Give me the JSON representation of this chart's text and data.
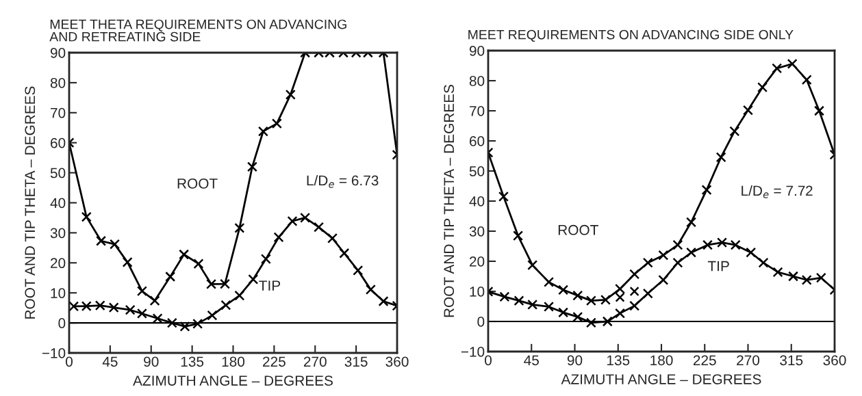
{
  "chart_data": [
    {
      "type": "line",
      "title": "MEET THETA REQUIREMENTS ON ADVANCING\nAND RETREATING SIDE",
      "xlabel": "AZIMUTH ANGLE – DEGREES",
      "ylabel": "ROOT AND TIP THETA – DEGREES",
      "xlim": [
        0,
        360
      ],
      "xticks": [
        0,
        45,
        90,
        135,
        180,
        225,
        270,
        315,
        360
      ],
      "ylim": [
        -10,
        90
      ],
      "yticks": [
        {
          "value": -10,
          "label": "−10"
        },
        0,
        10,
        20,
        30,
        40,
        50,
        60,
        70,
        80,
        90
      ],
      "marker": "cross",
      "grid": false,
      "ref_lines": [
        {
          "axis": "y",
          "value": 0
        }
      ],
      "annotations": [
        "L/D$_{e}$ = 6.73"
      ],
      "series": [
        {
          "name": "ROOT",
          "color": "#000000",
          "x": [
            0,
            19,
            35,
            50,
            64,
            80,
            94,
            111,
            126,
            142,
            156,
            171,
            187,
            201,
            213,
            228,
            243,
            259,
            274,
            286,
            301,
            315,
            328,
            345,
            360
          ],
          "values": [
            60,
            35.3,
            27.3,
            26.2,
            20.2,
            10.6,
            7.4,
            15.4,
            22.8,
            19.7,
            12.9,
            13,
            31.6,
            52,
            63.8,
            66.4,
            76,
            90,
            90,
            90,
            90,
            90,
            90,
            90,
            56
          ]
        },
        {
          "name": "TIP",
          "color": "#000000",
          "x": [
            5,
            19,
            34,
            49,
            67,
            80,
            97,
            113,
            127,
            141,
            157,
            172,
            187,
            202,
            216,
            230,
            245,
            259,
            274,
            289,
            302,
            317,
            331,
            345,
            360
          ],
          "values": [
            5.5,
            5.6,
            5.8,
            5.1,
            4.3,
            3.1,
            1.5,
            0,
            -1.2,
            -0.3,
            2.5,
            5.9,
            9.1,
            14.5,
            21.3,
            28.5,
            33.9,
            35,
            31.9,
            28.2,
            23.2,
            17.5,
            11.1,
            7.2,
            5.7
          ]
        }
      ]
    },
    {
      "type": "line",
      "title": "MEET REQUIREMENTS ON ADVANCING SIDE ONLY",
      "xlabel": "AZIMUTH ANGLE – DEGREES",
      "ylabel": "ROOT AND TIP THETA – DEGREES",
      "xlim": [
        0,
        360
      ],
      "xticks": [
        0,
        45,
        90,
        135,
        180,
        225,
        270,
        315,
        360
      ],
      "ylim": [
        -10,
        90
      ],
      "yticks": [
        {
          "value": -10,
          "label": "−10"
        },
        0,
        10,
        20,
        30,
        40,
        50,
        60,
        70,
        80,
        90
      ],
      "marker": "cross",
      "grid": false,
      "ref_lines": [
        {
          "axis": "y",
          "value": 0
        }
      ],
      "annotations": [
        "L/D$_{e}$ = 7.72"
      ],
      "series": [
        {
          "name": "ROOT",
          "color": "#000000",
          "x": [
            0,
            16,
            31,
            46,
            63,
            78,
            93,
            107,
            122,
            137,
            152,
            166,
            182,
            197,
            211,
            227,
            242,
            256,
            270,
            285,
            300,
            316,
            331,
            344,
            360
          ],
          "values": [
            56.1,
            41.5,
            28.5,
            18.7,
            13.1,
            10.5,
            8.6,
            6.9,
            7.2,
            10.8,
            15.7,
            19.5,
            22,
            25.4,
            33,
            43.7,
            54.6,
            63.2,
            70.2,
            77.8,
            84.1,
            85.6,
            80.3,
            70,
            55.4
          ]
        },
        {
          "name": "TIP",
          "color": "#000000",
          "x": [
            0,
            17,
            32,
            46,
            63,
            78,
            93,
            107,
            124,
            137,
            152,
            166,
            182,
            197,
            211,
            228,
            243,
            257,
            273,
            286,
            301,
            317,
            331,
            346,
            360
          ],
          "values": [
            9.9,
            8.2,
            6.9,
            5.6,
            4.9,
            3,
            1.5,
            -0.4,
            0,
            2.7,
            5.2,
            9.3,
            13.8,
            19.5,
            22.9,
            25.4,
            26.2,
            25.4,
            22.9,
            19.5,
            16.4,
            15,
            13.8,
            14.5,
            10.5
          ]
        },
        {
          "type": "scatter",
          "color": "#000000",
          "x": [
            137,
            152
          ],
          "values": [
            8,
            10
          ]
        }
      ]
    }
  ]
}
